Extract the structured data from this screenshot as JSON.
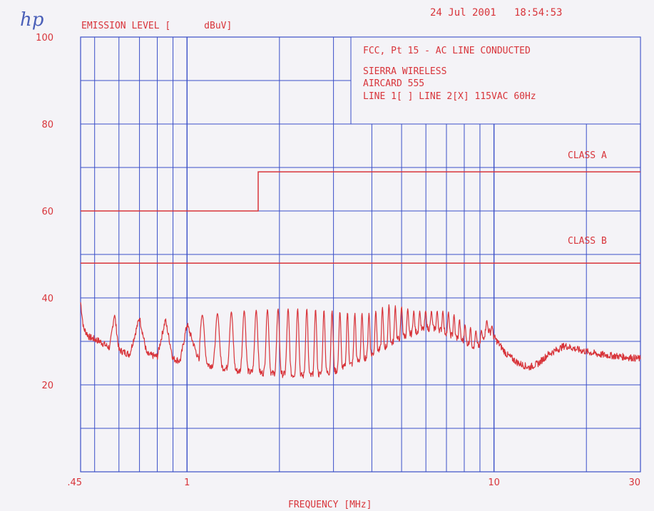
{
  "header": {
    "logo": "hp",
    "ylabel": "EMISSION LEVEL [      dBuV]",
    "timestamp": "24 Jul 2001   18:54:53"
  },
  "annotation": {
    "line1": "FCC, Pt 15 - AC LINE CONDUCTED",
    "line2": "SIERRA WIRELESS",
    "line3": "AIRCARD 555",
    "line4": "LINE 1[ ] LINE 2[X] 115VAC 60Hz"
  },
  "xlabel": "FREQUENCY [MHz]",
  "colors": {
    "grid": "#3a4fc8",
    "trace": "#d8343a",
    "background": "#f4f3f7"
  },
  "chart_data": {
    "type": "line",
    "title": "FCC, Pt 15 - AC LINE CONDUCTED",
    "xlabel": "FREQUENCY [MHz]",
    "ylabel": "EMISSION LEVEL [dBuV]",
    "x_scale": "log",
    "xlim": [
      0.45,
      30
    ],
    "ylim": [
      0,
      100
    ],
    "grid": true,
    "x_ticks": [
      {
        "value": 0.45,
        "label": ".45"
      },
      {
        "value": 1,
        "label": "1"
      },
      {
        "value": 10,
        "label": "10"
      },
      {
        "value": 30,
        "label": "30"
      }
    ],
    "y_ticks": [
      {
        "value": 20,
        "label": "20"
      },
      {
        "value": 40,
        "label": "40"
      },
      {
        "value": 60,
        "label": "60"
      },
      {
        "value": 80,
        "label": "80"
      },
      {
        "value": 100,
        "label": "100"
      }
    ],
    "limit_lines": [
      {
        "name": "CLASS A",
        "points": [
          [
            0.45,
            60
          ],
          [
            1.705,
            60
          ],
          [
            1.705,
            69
          ],
          [
            30,
            69
          ]
        ]
      },
      {
        "name": "CLASS B",
        "points": [
          [
            0.45,
            48
          ],
          [
            30,
            48
          ]
        ]
      }
    ],
    "series": [
      {
        "name": "emission",
        "points": [
          [
            0.45,
            39
          ],
          [
            0.46,
            33
          ],
          [
            0.48,
            31
          ],
          [
            0.52,
            30
          ],
          [
            0.56,
            28.5
          ],
          [
            0.58,
            36.5
          ],
          [
            0.6,
            28
          ],
          [
            0.65,
            27
          ],
          [
            0.7,
            35.5
          ],
          [
            0.74,
            27
          ],
          [
            0.8,
            26.5
          ],
          [
            0.85,
            35
          ],
          [
            0.9,
            26
          ],
          [
            0.95,
            25.5
          ],
          [
            1.0,
            34
          ],
          [
            1.1,
            25
          ],
          [
            1.3,
            24
          ],
          [
            1.5,
            23
          ],
          [
            2.0,
            22.5
          ],
          [
            2.5,
            22
          ],
          [
            3.0,
            23
          ],
          [
            3.5,
            25
          ],
          [
            4.0,
            27
          ],
          [
            4.5,
            29
          ],
          [
            5.0,
            31
          ],
          [
            5.5,
            32
          ],
          [
            6.0,
            33
          ],
          [
            6.5,
            33
          ],
          [
            7.0,
            32
          ],
          [
            7.5,
            31
          ],
          [
            8.0,
            30
          ],
          [
            8.5,
            29
          ],
          [
            9.0,
            29
          ],
          [
            9.5,
            33
          ],
          [
            10.0,
            31
          ],
          [
            11.0,
            27
          ],
          [
            12.0,
            25
          ],
          [
            13.0,
            24
          ],
          [
            14.0,
            25
          ],
          [
            15.0,
            27
          ],
          [
            17.0,
            29
          ],
          [
            19.0,
            28
          ],
          [
            22.0,
            27
          ],
          [
            26.0,
            26.5
          ],
          [
            30.0,
            26
          ]
        ],
        "peak_envelope": [
          [
            1.1,
            36
          ],
          [
            1.5,
            37
          ],
          [
            2.0,
            37.5
          ],
          [
            2.5,
            37.5
          ],
          [
            3.0,
            37
          ],
          [
            3.5,
            36.5
          ],
          [
            4.0,
            36.5
          ],
          [
            4.5,
            38.5
          ],
          [
            5.0,
            38
          ],
          [
            5.5,
            37
          ],
          [
            6.0,
            37
          ],
          [
            6.5,
            37
          ],
          [
            7.0,
            37
          ],
          [
            7.5,
            36
          ],
          [
            8.0,
            34
          ],
          [
            8.5,
            33
          ],
          [
            9.0,
            32
          ],
          [
            9.5,
            35
          ],
          [
            10.0,
            33
          ]
        ]
      }
    ],
    "annotations": [
      "CLASS A",
      "CLASS B"
    ]
  }
}
